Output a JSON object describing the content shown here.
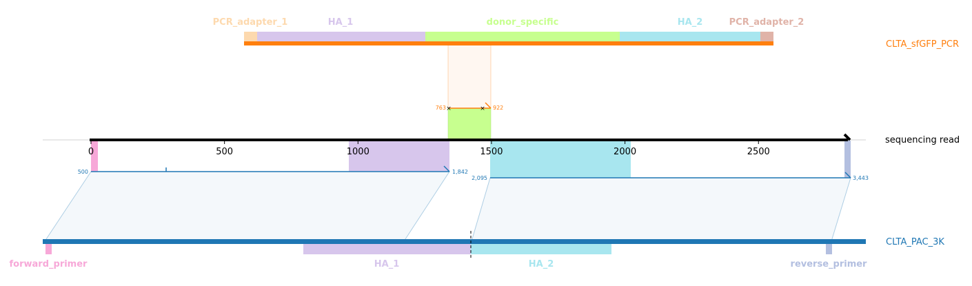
{
  "reference_top": {
    "name": "CLTA_sfGFP_PCR",
    "color": "#ff7f0e",
    "features": [
      {
        "id": "pcr-adapter-1",
        "label": "PCR_adapter_1",
        "color": "#fdd9ae"
      },
      {
        "id": "ha-1",
        "label": "HA_1",
        "color": "#d7c6ec"
      },
      {
        "id": "donor-specific",
        "label": "donor_specific",
        "color": "#c7ff8f"
      },
      {
        "id": "ha-2",
        "label": "HA_2",
        "color": "#a8e6ef"
      },
      {
        "id": "pcr-adapter-2",
        "label": "PCR_adapter_2",
        "color": "#e0b3a8"
      }
    ],
    "alignment": {
      "start_label": "763",
      "end_label": "922"
    }
  },
  "read": {
    "name": "sequencing read",
    "ticks": [
      "0",
      "500",
      "1000",
      "1500",
      "2000",
      "2500"
    ],
    "alignments": [
      {
        "id": "left",
        "start_label": "500",
        "end_label": "1,842",
        "color": "#1f77b4"
      },
      {
        "id": "right",
        "start_label": "2,095",
        "end_label": "3,443",
        "color": "#1f77b4"
      }
    ]
  },
  "reference_bottom": {
    "name": "CLTA_PAC_3K",
    "color": "#1f77b4",
    "features": [
      {
        "id": "forward-primer",
        "label": "forward_primer",
        "color": "#f7a8d8"
      },
      {
        "id": "ha-1",
        "label": "HA_1",
        "color": "#d7c6ec"
      },
      {
        "id": "ha-2",
        "label": "HA_2",
        "color": "#a8e6ef"
      },
      {
        "id": "reverse-primer",
        "label": "reverse_primer",
        "color": "#b3bfe0"
      }
    ]
  }
}
